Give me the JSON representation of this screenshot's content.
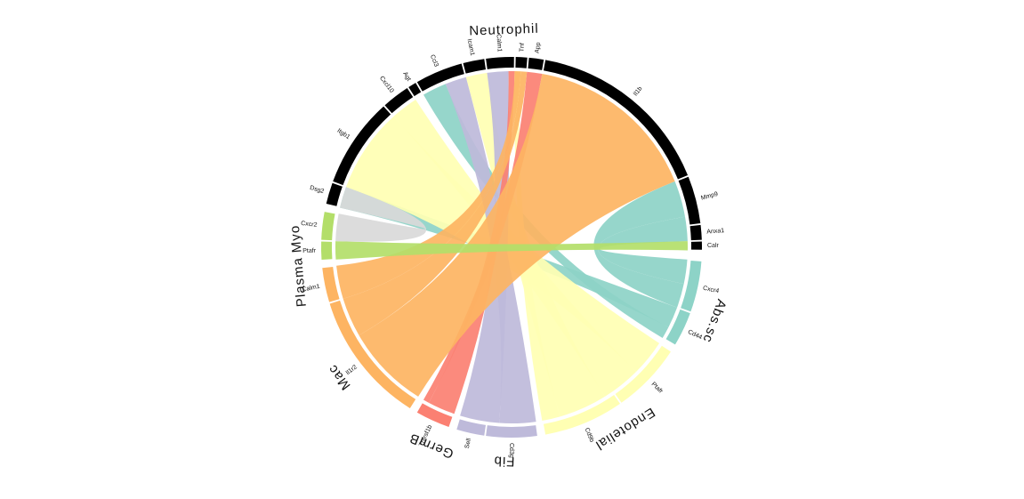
{
  "diagram": {
    "type": "chord",
    "ring_color": "#000000",
    "receiver_groups": [
      {
        "name": "Neutrophil",
        "segments": [
          "Calr",
          "Anxa1",
          "Mmp9",
          "Il1b",
          "App",
          "Tnf",
          "Calm1",
          "Icam1",
          "Ccl3",
          "Agt",
          "Cxcl10",
          "Itgb1",
          "Dsg2"
        ]
      },
      {
        "name": "Plasma Myo",
        "segments": [
          "Cxcr2",
          "Ptafr"
        ]
      },
      {
        "name": "Mac",
        "segments": [
          "Calm1",
          "Il1r2"
        ]
      },
      {
        "name": "GermB",
        "segments": [
          "Tnfrsf1b"
        ]
      },
      {
        "name": "Fib",
        "segments": [
          "Sell",
          "Cd3g"
        ]
      },
      {
        "name": "Endotelial",
        "segments": [
          "Cd9b",
          "Ptafr"
        ]
      },
      {
        "name": "Abs.sc",
        "segments": [
          "Cd44",
          "Cxcr4"
        ]
      }
    ],
    "source_colors": {
      "Abs.sc": "#8dd3c7",
      "Endotelial": "#ffffb3",
      "Fib": "#bebada",
      "GermB": "#fb8072",
      "Mac": "#fdb462",
      "Plasma Myo": "#b3de69",
      "Neutrophil": "#d9d9d9"
    }
  }
}
